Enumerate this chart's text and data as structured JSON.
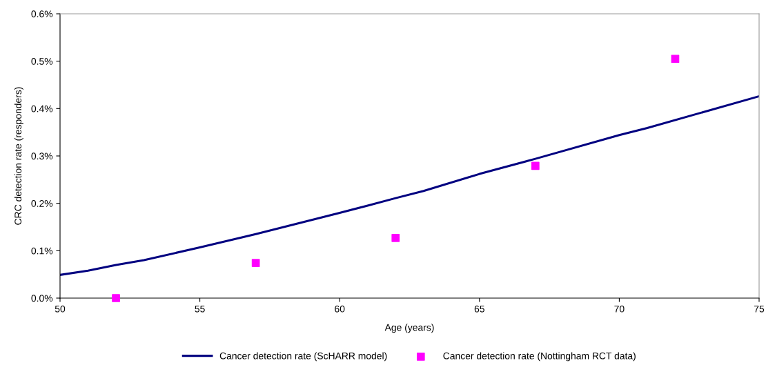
{
  "chart_data": {
    "type": "line",
    "xlabel": "Age (years)",
    "ylabel": "CRC detection rate (responders)",
    "xlim": [
      50,
      75
    ],
    "xticks": [
      50,
      55,
      60,
      65,
      70,
      75
    ],
    "ylim": [
      0,
      0.6
    ],
    "yticks": [
      {
        "value": 0,
        "label": "0.0%"
      },
      {
        "value": 0.1,
        "label": "0.1%"
      },
      {
        "value": 0.2,
        "label": "0.2%"
      },
      {
        "value": 0.3,
        "label": "0.3%"
      },
      {
        "value": 0.4,
        "label": "0.4%"
      },
      {
        "value": 0.5,
        "label": "0.5%"
      },
      {
        "value": 0.6,
        "label": "0.6%"
      }
    ],
    "grid": false,
    "legend": "bottom",
    "series": [
      {
        "name": "Cancer detection rate (ScHARR model)",
        "color": "#000080",
        "marker": "none",
        "line_style": "solid",
        "x": [
          50,
          51,
          52,
          53,
          55,
          57,
          60,
          61,
          62,
          63,
          65,
          67,
          70,
          71,
          75
        ],
        "values": [
          0.049,
          0.058,
          0.07,
          0.08,
          0.107,
          0.135,
          0.18,
          0.195,
          0.211,
          0.226,
          0.262,
          0.294,
          0.344,
          0.359,
          0.426
        ]
      },
      {
        "name": "Cancer detection rate (Nottingham RCT data)",
        "type": "scatter",
        "color": "#ff00ff",
        "marker": "square",
        "x": [
          52,
          57,
          62,
          67,
          72
        ],
        "values": [
          0.0,
          0.074,
          0.127,
          0.279,
          0.505
        ]
      }
    ]
  }
}
